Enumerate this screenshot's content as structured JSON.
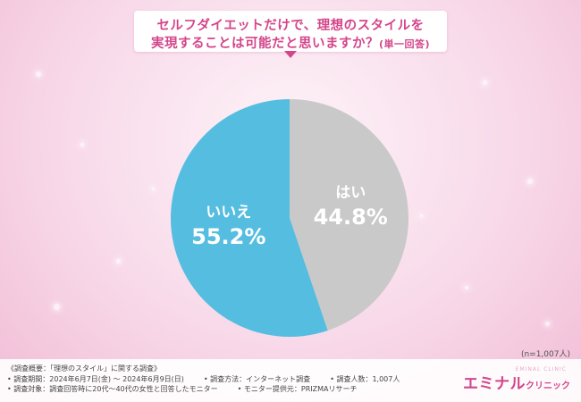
{
  "title": {
    "line1": "セルフダイエットだけで、理想のスタイルを",
    "line2": "実現することは可能だと思いますか？",
    "note": "(単一回答)"
  },
  "sample_size": "(n=1,007人)",
  "colors": {
    "yes": "#c9c9c9",
    "no": "#55bde0",
    "accent": "#d4458a"
  },
  "chart_data": {
    "type": "pie",
    "title": "セルフダイエットだけで、理想のスタイルを実現することは可能だと思いますか？(単一回答)",
    "start": "12 o'clock, clockwise",
    "slices": [
      {
        "label": "はい",
        "value": 44.8,
        "display": "44.8%",
        "color": "#c9c9c9",
        "text_color": "#ffffff"
      },
      {
        "label": "いいえ",
        "value": 55.2,
        "display": "55.2%",
        "color": "#55bde0",
        "text_color": "#ffffff"
      }
    ]
  },
  "footer": {
    "summary": "《調査概要：「理想のスタイル」に関する調査》",
    "period": "• 調査期間：2024年6月7日(金) 〜 2024年6月9日(日)",
    "method": "• 調査方法：インターネット調査",
    "count": "• 調査人数：1,007人",
    "target": "• 調査対象：調査回答時に20代〜40代の女性と回答したモニター",
    "provider": "• モニター提供元：PRIZMAリサーチ"
  },
  "brand": {
    "main": "エミナル",
    "sub": "クリニック",
    "tag": "EMINAL CLINIC"
  }
}
